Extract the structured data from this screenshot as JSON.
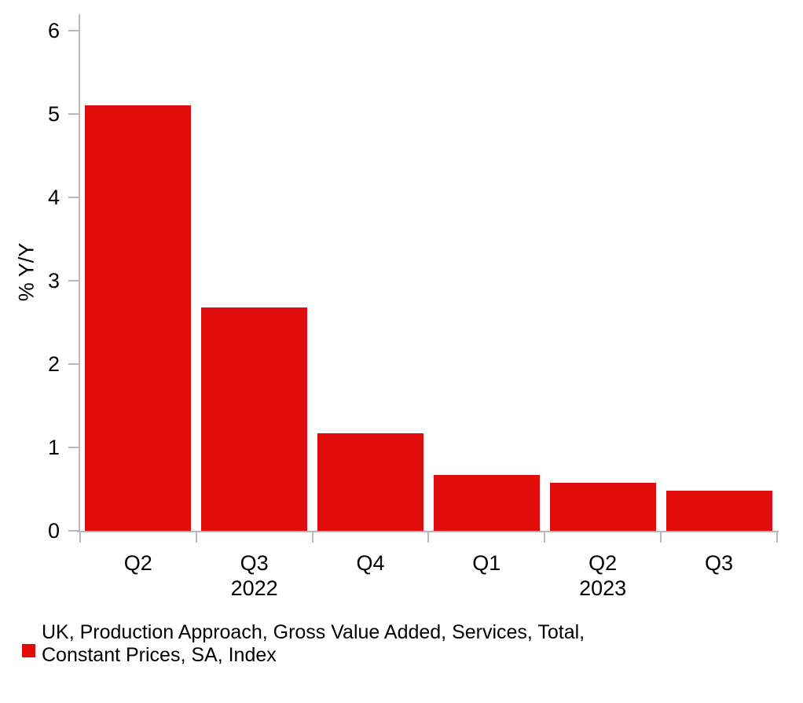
{
  "chart_data": {
    "type": "bar",
    "title": "",
    "xlabel": "",
    "ylabel": "% Y/Y",
    "ylim": [
      0,
      6
    ],
    "yticks": [
      0,
      1,
      2,
      3,
      4,
      5,
      6
    ],
    "grid": false,
    "categories": [
      "Q2",
      "Q3",
      "Q4",
      "Q1",
      "Q2",
      "Q3"
    ],
    "categories_full": [
      "Q2 2022",
      "Q3 2022",
      "Q4 2022",
      "Q1 2023",
      "Q2 2023",
      "Q3 2023"
    ],
    "values": [
      5.1,
      2.68,
      1.17,
      0.67,
      0.58,
      0.48
    ],
    "x_year_labels": [
      {
        "text": "2022",
        "bar_index": 1
      },
      {
        "text": "2023",
        "bar_index": 4
      }
    ],
    "series_name": "UK, Production Approach, Gross Value Added, Services, Total, Constant Prices, SA, Index",
    "legend_label_lines": [
      "UK, Production Approach, Gross Value Added, Services, Total,",
      "Constant Prices, SA, Index"
    ],
    "legend_position": "bottom-left",
    "bar_color": "#e10c0c",
    "axis_color": "#b8b8b8",
    "text_color": "#000000"
  }
}
